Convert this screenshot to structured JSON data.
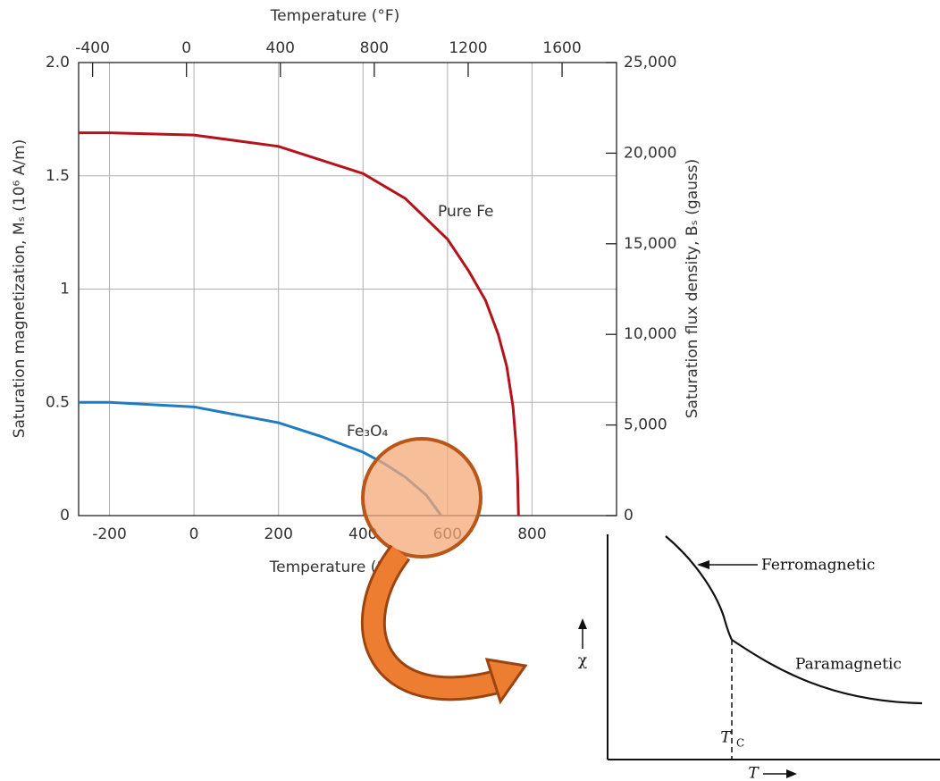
{
  "chart_data": {
    "type": "line",
    "x_label": "Temperature (°C)",
    "x2_label": "Temperature (°F)",
    "y_label": "Saturation magnetization, Mₛ (10⁶ A/m)",
    "y2_label": "Saturation flux density, Bₛ (gauss)",
    "xlim": [
      -273,
      1000
    ],
    "xticks": [
      -200,
      0,
      200,
      400,
      600,
      800
    ],
    "x2lim": [
      -459.4,
      1832
    ],
    "x2ticks": [
      -400,
      0,
      400,
      800,
      1200,
      1600
    ],
    "ylim": [
      0,
      2.0
    ],
    "yticks": [
      0,
      0.5,
      1.0,
      1.5,
      {
        "value": 2.0,
        "label": "2.0"
      }
    ],
    "y2lim": [
      0,
      25000
    ],
    "y2ticks": [
      0,
      {
        "value": 5000,
        "label": "5,000"
      },
      {
        "value": 10000,
        "label": "10,000"
      },
      {
        "value": 15000,
        "label": "15,000"
      },
      {
        "value": 20000,
        "label": "20,000"
      },
      {
        "value": 25000,
        "label": "25,000"
      }
    ],
    "grid": true,
    "series": [
      {
        "name": "Pure Fe",
        "color": "#b5121b",
        "x": [
          -273,
          -200,
          0,
          200,
          400,
          500,
          600,
          650,
          690,
          720,
          740,
          755,
          762,
          766,
          768
        ],
        "values": [
          1.69,
          1.69,
          1.68,
          1.63,
          1.51,
          1.4,
          1.22,
          1.08,
          0.95,
          0.8,
          0.66,
          0.48,
          0.32,
          0.16,
          0
        ]
      },
      {
        "name": "Fe₃O₄",
        "color": "#1f7cc1",
        "x": [
          -273,
          -200,
          0,
          200,
          300,
          400,
          450,
          500,
          550,
          585
        ],
        "values": [
          0.5,
          0.5,
          0.48,
          0.41,
          0.35,
          0.28,
          0.23,
          0.17,
          0.09,
          0
        ]
      }
    ]
  },
  "inset": {
    "y_label": "χ",
    "ferromagnetic": "Ferromagnetic",
    "paramagnetic": "Paramagnetic",
    "tc": "T",
    "tc_sub": "C",
    "x_label": "T"
  }
}
